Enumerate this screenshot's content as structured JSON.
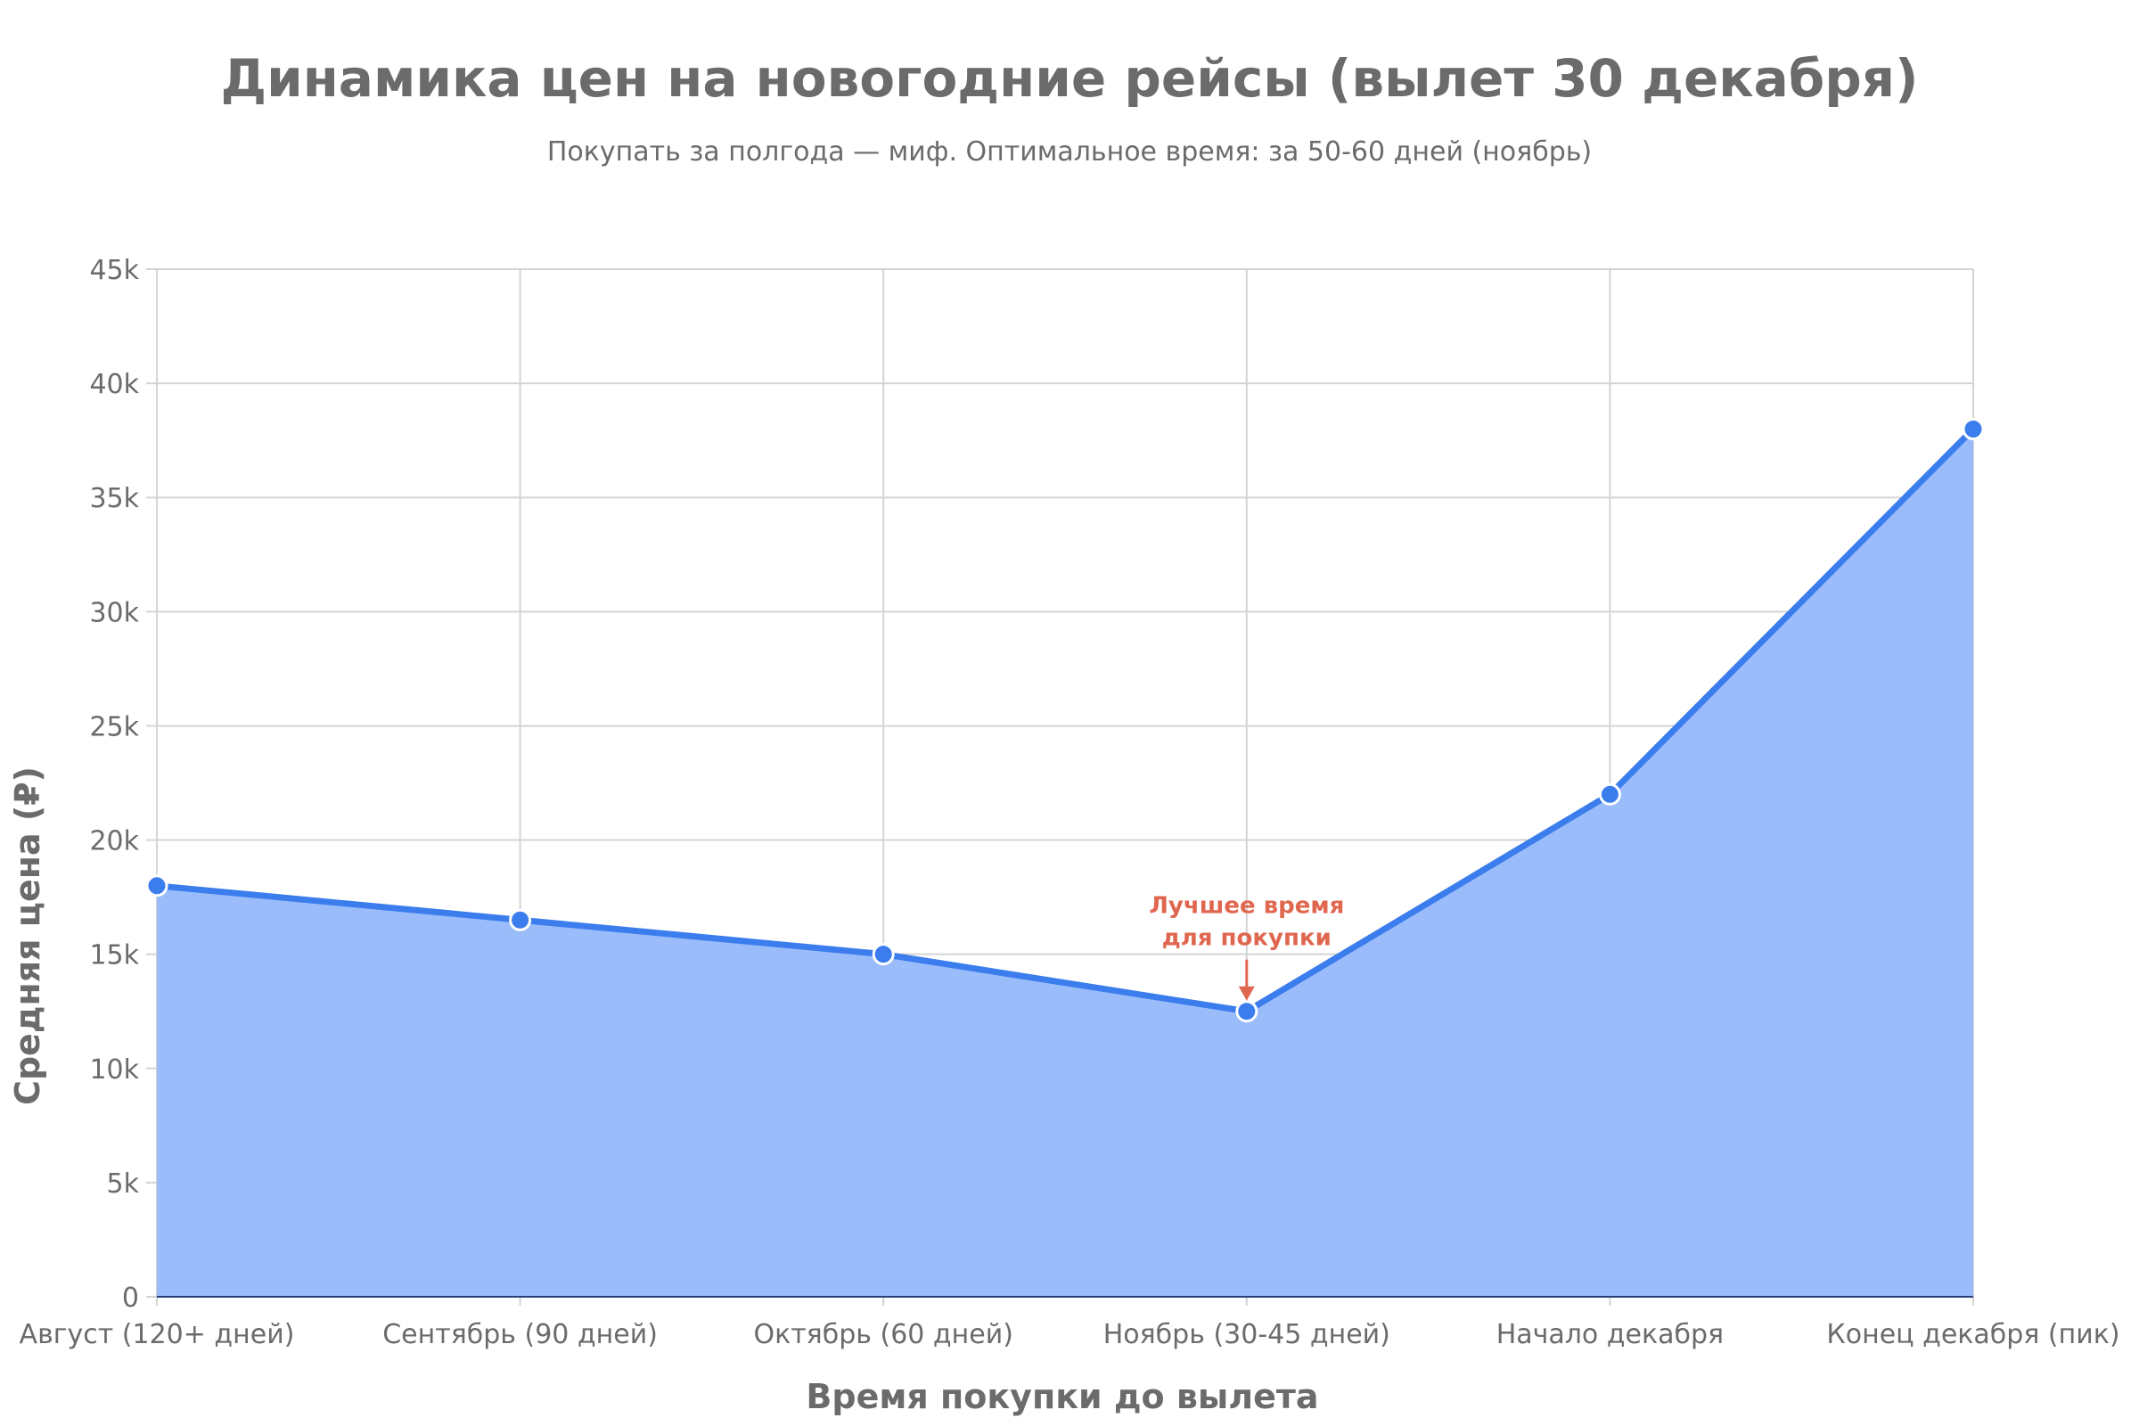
{
  "chart_data": {
    "type": "area",
    "title": "Динамика цен на новогодние рейсы (вылет 30 декабря)",
    "subtitle": "Покупать за полгода — миф. Оптимальное время: за 50-60 дней (ноябрь)",
    "xlabel": "Время покупки до вылета",
    "ylabel": "Средняя цена (₽)",
    "categories": [
      "Август (120+ дней)",
      "Сентябрь (90 дней)",
      "Октябрь (60 дней)",
      "Ноябрь (30-45 дней)",
      "Начало декабря",
      "Конец декабря (пик)"
    ],
    "values": [
      18000,
      16500,
      15000,
      12500,
      22000,
      38000
    ],
    "ylim": [
      0,
      45000
    ],
    "y_ticks": [
      {
        "value": 0,
        "label": "0"
      },
      {
        "value": 5000,
        "label": "5k"
      },
      {
        "value": 10000,
        "label": "10k"
      },
      {
        "value": 15000,
        "label": "15k"
      },
      {
        "value": 20000,
        "label": "20k"
      },
      {
        "value": 25000,
        "label": "25k"
      },
      {
        "value": 30000,
        "label": "30k"
      },
      {
        "value": 35000,
        "label": "35k"
      },
      {
        "value": 40000,
        "label": "40k"
      },
      {
        "value": 45000,
        "label": "45k"
      }
    ],
    "grid": true,
    "annotation": {
      "category_index": 3,
      "lines": [
        "Лучшее время",
        "для покупки"
      ]
    },
    "colors": {
      "line": "#3b7ded",
      "fill": "#9bbcfb",
      "annotation": "#e0674f",
      "grid": "#d4d4d4",
      "text": "#6b6b6b"
    }
  }
}
